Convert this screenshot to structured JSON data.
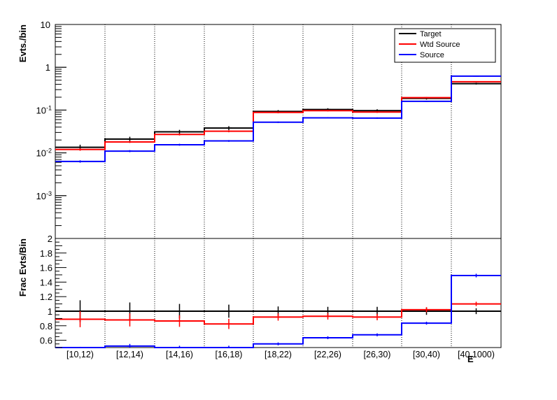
{
  "chart_data": [
    {
      "type": "line",
      "ylabel": "Evts./bin",
      "yscale": "log",
      "ylim": [
        0.0001,
        10
      ],
      "ytick_labels": [
        {
          "mant": "10",
          "exp": ""
        },
        {
          "mant": "1",
          "exp": ""
        },
        {
          "mant": "10",
          "exp": "-1"
        },
        {
          "mant": "10",
          "exp": "-2"
        },
        {
          "mant": "10",
          "exp": "-3"
        }
      ],
      "categories": [
        "[10,12)",
        "[12,14)",
        "[14,16)",
        "[16,18)",
        "[18,22)",
        "[22,26)",
        "[26,30)",
        "[30,40)",
        "[40,1000)"
      ],
      "legend": {
        "position": "top-right"
      },
      "series": [
        {
          "name": "Target",
          "color": "#000000",
          "values": [
            0.0135,
            0.021,
            0.031,
            0.038,
            0.093,
            0.103,
            0.097,
            0.188,
            0.415
          ],
          "errors": [
            0.002,
            0.0028,
            0.0035,
            0.004,
            0.007,
            0.0075,
            0.0075,
            0.012,
            0.02
          ]
        },
        {
          "name": "Wtd Source",
          "color": "#ff0000",
          "values": [
            0.012,
            0.018,
            0.027,
            0.032,
            0.088,
            0.097,
            0.09,
            0.195,
            0.46
          ],
          "errors": [
            0.0008,
            0.001,
            0.0015,
            0.0017,
            0.004,
            0.004,
            0.004,
            0.007,
            0.013
          ]
        },
        {
          "name": "Source",
          "color": "#0000ff",
          "values": [
            0.0063,
            0.011,
            0.0155,
            0.019,
            0.052,
            0.066,
            0.065,
            0.16,
            0.62
          ],
          "errors": [
            0.0004,
            0.0006,
            0.0008,
            0.0009,
            0.002,
            0.0025,
            0.0025,
            0.005,
            0.015
          ]
        }
      ]
    },
    {
      "type": "line",
      "ylabel": "Frac Evts/Bin",
      "ylim": [
        0.5,
        2
      ],
      "ytick_labels": [
        "2",
        "1.8",
        "1.6",
        "1.4",
        "1.2",
        "1",
        "0.8",
        "0.6"
      ],
      "ytick_values": [
        2,
        1.8,
        1.6,
        1.4,
        1.2,
        1,
        0.8,
        0.6
      ],
      "categories": [
        "[10,12)",
        "[12,14)",
        "[14,16)",
        "[16,18)",
        "[18,22)",
        "[22,26)",
        "[26,30)",
        "[30,40)",
        "[40,1000)"
      ],
      "xlabel_partial": "E",
      "series": [
        {
          "name": "Target",
          "color": "#000000",
          "values": [
            1,
            1,
            1,
            1,
            1,
            1,
            1,
            1,
            1
          ],
          "errors": [
            0.15,
            0.12,
            0.1,
            0.09,
            0.065,
            0.06,
            0.06,
            0.05,
            0.04
          ]
        },
        {
          "name": "Wtd Source",
          "color": "#ff0000",
          "values": [
            0.89,
            0.88,
            0.865,
            0.825,
            0.92,
            0.93,
            0.92,
            1.02,
            1.1
          ],
          "errors": [
            0.11,
            0.09,
            0.08,
            0.07,
            0.05,
            0.045,
            0.045,
            0.035,
            0.03
          ]
        },
        {
          "name": "Source",
          "color": "#0000ff",
          "values": [
            0.48,
            0.52,
            0.5,
            0.5,
            0.55,
            0.635,
            0.675,
            0.835,
            1.49
          ],
          "errors": [
            0.03,
            0.03,
            0.025,
            0.025,
            0.02,
            0.02,
            0.02,
            0.02,
            0.025
          ]
        }
      ]
    }
  ]
}
